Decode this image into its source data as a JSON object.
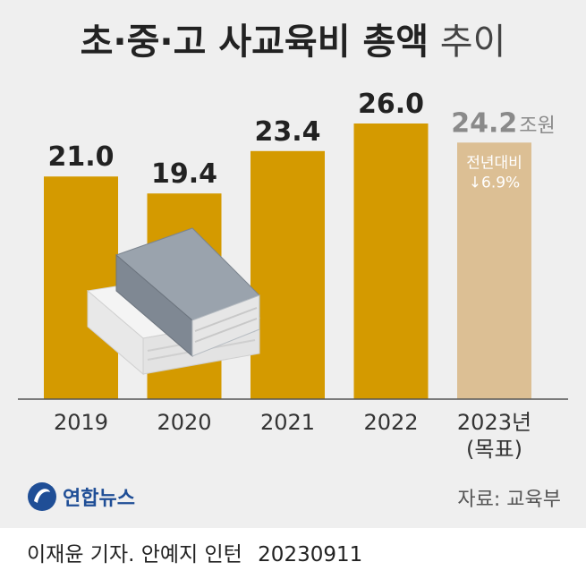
{
  "header": {
    "title_bold": "초·중·고 사교육비 총액",
    "title_light": "추이"
  },
  "chart_data": {
    "type": "bar",
    "categories": [
      "2019",
      "2020",
      "2021",
      "2022",
      "2023년"
    ],
    "category_sublabels": [
      "",
      "",
      "",
      "",
      "(목표)"
    ],
    "values": [
      21.0,
      19.4,
      23.4,
      26.0,
      24.2
    ],
    "value_labels": [
      "21.0",
      "19.4",
      "23.4",
      "26.0",
      "24.2"
    ],
    "unit": "조원",
    "annotation": {
      "line1": "전년대비",
      "line2": "↓6.9%"
    },
    "colors": {
      "bar": "#d49a00",
      "target_bar": "#dcbf94",
      "target_label": "#8a8a8a"
    },
    "title": "초·중·고 사교육비 총액 추이",
    "xlabel": "",
    "ylabel": ""
  },
  "branding": {
    "logo_text": "연합뉴스"
  },
  "source": "자료: 교육부",
  "credit": {
    "authors": "이재윤 기자. 안예지 인턴",
    "date": "20230911"
  }
}
